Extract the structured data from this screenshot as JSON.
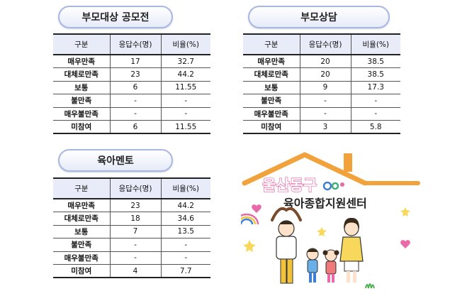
{
  "sections": [
    {
      "title": "부모대상 공모전",
      "headers": [
        "구분",
        "응답수(명)",
        "비율(%)"
      ],
      "rows": [
        [
          "매우만족",
          "17",
          "32.7"
        ],
        [
          "대체로만족",
          "23",
          "44.2"
        ],
        [
          "보통",
          "6",
          "11.55"
        ],
        [
          "불만족",
          "-",
          "-"
        ],
        [
          "매우불만족",
          "-",
          "-"
        ],
        [
          "미참여",
          "6",
          "11.55"
        ]
      ]
    },
    {
      "title": "부모상담",
      "headers": [
        "구분",
        "응답수(명)",
        "비율(%)"
      ],
      "rows": [
        [
          "매우만족",
          "20",
          "38.5"
        ],
        [
          "대체로만족",
          "20",
          "38.5"
        ],
        [
          "보통",
          "9",
          "17.3"
        ],
        [
          "불만족",
          "-",
          "-"
        ],
        [
          "매우불만족",
          "-",
          "-"
        ],
        [
          "미참여",
          "3",
          "5.8"
        ]
      ]
    },
    {
      "title": "육아멘토",
      "headers": [
        "구분",
        "응답수(명)",
        "비율(%)"
      ],
      "rows": [
        [
          "매우만족",
          "23",
          "44.2"
        ],
        [
          "대체로만족",
          "18",
          "34.6"
        ],
        [
          "보통",
          "7",
          "13.5"
        ],
        [
          "불만족",
          "-",
          "-"
        ],
        [
          "매우불만족",
          "-",
          "-"
        ],
        [
          "미참여",
          "4",
          "7.7"
        ]
      ]
    }
  ],
  "logo": {
    "line1": "울산동구",
    "line2": "육아종합지원센터",
    "colors": {
      "roof": "#f2a23a",
      "pink": "#e96aa8",
      "accent_blue": "#3f7fd0"
    }
  }
}
